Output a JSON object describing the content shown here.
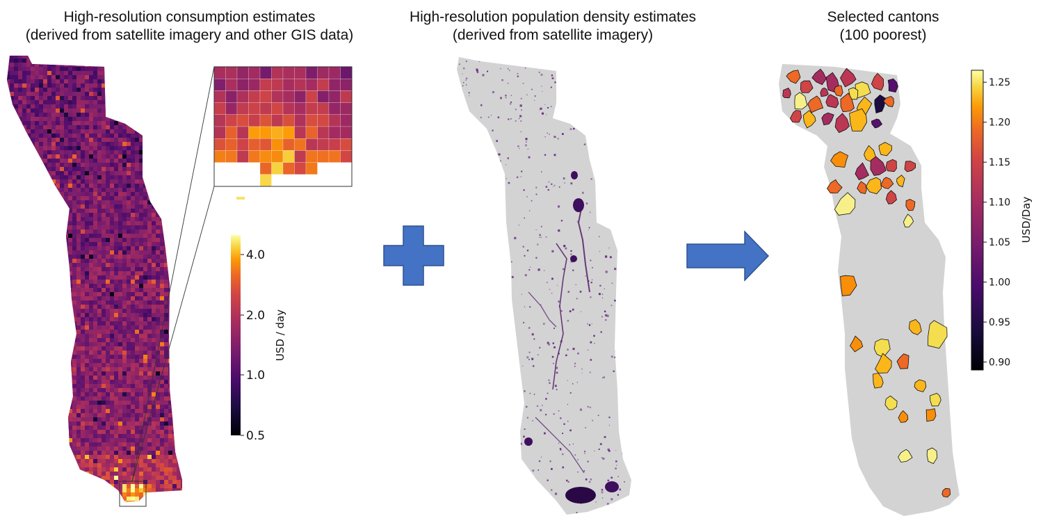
{
  "panels": [
    {
      "title_line1": "High-resolution consumption estimates",
      "title_line2": "(derived from satellite imagery and other GIS data)"
    },
    {
      "title_line1": "High-resolution population density estimates",
      "title_line2": "(derived from satellite imagery)"
    },
    {
      "title_line1": "Selected cantons",
      "title_line2": "(100 poorest)"
    }
  ],
  "colorbar_consumption": {
    "label": "USD / day",
    "ticks": [
      "0.5",
      "1.0",
      "2.0",
      "4.0"
    ]
  },
  "colorbar_cantons": {
    "label": "USD/Day",
    "ticks": [
      "0.90",
      "0.95",
      "1.00",
      "1.05",
      "1.10",
      "1.15",
      "1.20",
      "1.25"
    ]
  },
  "colors": {
    "map_gray": "#d3d3d3",
    "arrow_blue": "#4472c4",
    "arrow_border": "#2f528f",
    "inferno_dark": "#000004",
    "inferno_purple": "#56106e",
    "inferno_red": "#bb3754",
    "inferno_orange": "#f98e09",
    "inferno_yellow": "#fcffa4"
  },
  "symbols": {
    "plus": "plus-icon",
    "arrow": "right-arrow-icon"
  }
}
